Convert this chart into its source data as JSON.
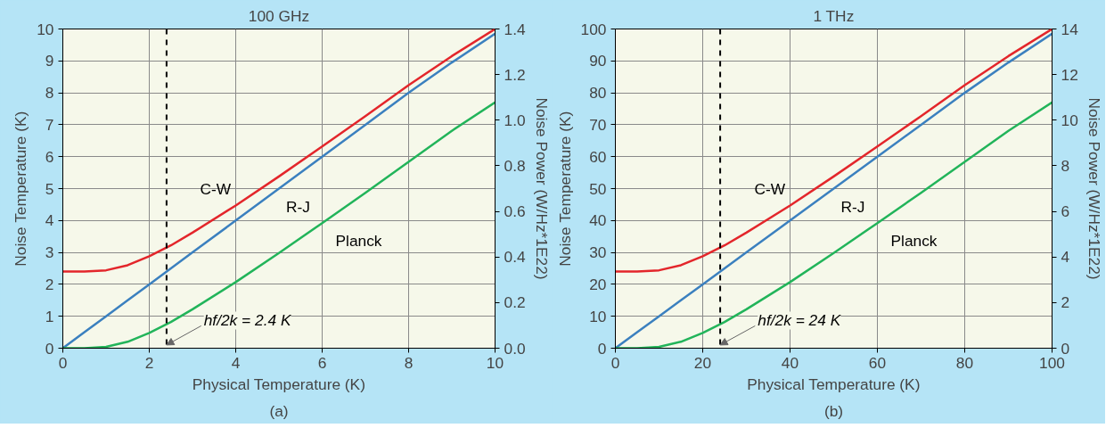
{
  "chart_data": [
    {
      "type": "line",
      "title": "100 GHz",
      "xlabel": "Physical Temperature (K)",
      "ylabel": "Noise Temperature (K)",
      "y2label": "Noise Power (W/Hz*1E22)",
      "x": [
        0,
        0.5,
        1,
        1.5,
        2,
        2.5,
        3,
        4,
        5,
        6,
        7,
        8,
        9,
        10
      ],
      "series": [
        {
          "name": "C-W",
          "color": "#e3262b",
          "values": [
            2.4,
            2.4,
            2.44,
            2.6,
            2.88,
            3.22,
            3.62,
            4.47,
            5.38,
            6.32,
            7.27,
            8.24,
            9.15,
            10.0
          ]
        },
        {
          "name": "R-J",
          "color": "#3b80bf",
          "values": [
            0,
            0.5,
            1,
            1.5,
            2,
            2.5,
            3,
            4,
            5,
            6,
            7,
            8,
            8.95,
            9.85
          ]
        },
        {
          "name": "Planck",
          "color": "#22b45a",
          "values": [
            0,
            0,
            0.04,
            0.2,
            0.48,
            0.82,
            1.22,
            2.07,
            2.98,
            3.92,
            4.87,
            5.84,
            6.81,
            7.7
          ]
        }
      ],
      "xlim": [
        0,
        10
      ],
      "ylim": [
        0,
        10
      ],
      "xticks": [
        0,
        2,
        4,
        6,
        8,
        10
      ],
      "yticks": [
        0,
        1,
        2,
        3,
        4,
        5,
        6,
        7,
        8,
        9,
        10
      ],
      "y2lim": [
        0,
        1.4
      ],
      "y2ticks": [
        {
          "value": 0,
          "label": "0.0"
        },
        {
          "value": 0.2,
          "label": "0.2"
        },
        {
          "value": 0.4,
          "label": "0.4"
        },
        {
          "value": 0.6,
          "label": "0.6"
        },
        {
          "value": 0.8,
          "label": "0.8"
        },
        {
          "value": 1.0,
          "label": "1.0"
        },
        {
          "value": 1.2,
          "label": "1.2"
        },
        {
          "value": 1.4,
          "label": "1.4"
        }
      ],
      "grid": true,
      "ref_lines": [
        {
          "axis": "x",
          "value": 2.4,
          "color": "#000000",
          "line_style": "dashed"
        }
      ],
      "annotations": [
        {
          "text": "hf/2k = 2.4 K",
          "x": 2.4,
          "y": 0.1
        },
        "(a)"
      ]
    },
    {
      "type": "line",
      "title": "1 THz",
      "xlabel": "Physical Temperature (K)",
      "ylabel": "Noise Temperature (K)",
      "y2label": "Noise Power (W/Hz*1E22)",
      "x": [
        0,
        5,
        10,
        15,
        20,
        25,
        30,
        40,
        50,
        60,
        70,
        80,
        90,
        100
      ],
      "series": [
        {
          "name": "C-W",
          "color": "#e3262b",
          "values": [
            24,
            24,
            24.4,
            26,
            28.8,
            32.2,
            36.2,
            44.7,
            53.8,
            63.2,
            72.7,
            82.4,
            91.5,
            100
          ]
        },
        {
          "name": "R-J",
          "color": "#3b80bf",
          "values": [
            0,
            5,
            10,
            15,
            20,
            25,
            30,
            40,
            50,
            60,
            70,
            80,
            89.5,
            98.5
          ]
        },
        {
          "name": "Planck",
          "color": "#22b45a",
          "values": [
            0,
            0,
            0.4,
            2,
            4.8,
            8.2,
            12.2,
            20.7,
            29.8,
            39.2,
            48.7,
            58.4,
            68.1,
            77
          ]
        }
      ],
      "xlim": [
        0,
        100
      ],
      "ylim": [
        0,
        100
      ],
      "xticks": [
        0,
        20,
        40,
        60,
        80,
        100
      ],
      "yticks": [
        0,
        10,
        20,
        30,
        40,
        50,
        60,
        70,
        80,
        90,
        100
      ],
      "y2lim": [
        0,
        14
      ],
      "y2ticks": [
        0,
        2,
        4,
        6,
        8,
        10,
        12,
        14
      ],
      "grid": true,
      "ref_lines": [
        {
          "axis": "x",
          "value": 24,
          "color": "#000000",
          "line_style": "dashed"
        }
      ],
      "annotations": [
        {
          "text": "hf/2k = 24 K",
          "x": 24,
          "y": 1
        },
        "(b)"
      ]
    }
  ]
}
